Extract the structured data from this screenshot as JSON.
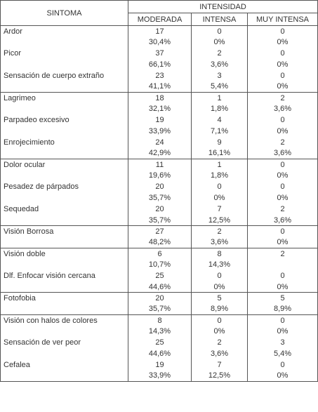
{
  "header": {
    "sintoma": "SINTOMA",
    "intensidad": "INTENSIDAD",
    "columns": [
      "MODERADA",
      "INTENSA",
      "MUY INTENSA"
    ]
  },
  "groups": [
    {
      "rows": [
        {
          "name": "Ardor",
          "counts": [
            "17",
            "0",
            "0"
          ],
          "percents": [
            "30,4%",
            "0%",
            "0%"
          ]
        },
        {
          "name": "Picor",
          "counts": [
            "37",
            "2",
            "0"
          ],
          "percents": [
            "66,1%",
            "3,6%",
            "0%"
          ]
        },
        {
          "name": "Sensación de cuerpo extraño",
          "counts": [
            "23",
            "3",
            "0"
          ],
          "percents": [
            "41,1%",
            "5,4%",
            "0%"
          ]
        }
      ]
    },
    {
      "rows": [
        {
          "name": "Lagrimeo",
          "counts": [
            "18",
            "1",
            "2"
          ],
          "percents": [
            "32,1%",
            "1,8%",
            "3,6%"
          ]
        },
        {
          "name": "Parpadeo excesivo",
          "counts": [
            "19",
            "4",
            "0"
          ],
          "percents": [
            "33,9%",
            "7,1%",
            "0%"
          ]
        },
        {
          "name": "Enrojecimiento",
          "counts": [
            "24",
            "9",
            "2"
          ],
          "percents": [
            "42,9%",
            "16,1%",
            "3,6%"
          ]
        }
      ]
    },
    {
      "rows": [
        {
          "name": "Dolor ocular",
          "counts": [
            "11",
            "1",
            "0"
          ],
          "percents": [
            "19,6%",
            "1,8%",
            "0%"
          ]
        },
        {
          "name": "Pesadez de párpados",
          "counts": [
            "20",
            "0",
            "0"
          ],
          "percents": [
            "35,7%",
            "0%",
            "0%"
          ]
        },
        {
          "name": "Sequedad",
          "counts": [
            "20",
            "7",
            "2"
          ],
          "percents": [
            "35,7%",
            "12,5%",
            "3,6%"
          ]
        }
      ]
    },
    {
      "rows": [
        {
          "name": "Visión Borrosa",
          "counts": [
            "27",
            "2",
            "0"
          ],
          "percents": [
            "48,2%",
            "3,6%",
            "0%"
          ]
        }
      ]
    },
    {
      "rows": [
        {
          "name": "Visión doble",
          "counts": [
            "6",
            "8",
            "2"
          ],
          "percents": [
            "10,7%",
            "14,3%",
            null
          ]
        },
        {
          "name": "Dlf. Enfocar visión cercana",
          "counts": [
            "25",
            "0",
            "0"
          ],
          "percents": [
            "44,6%",
            "0%",
            "0%"
          ]
        }
      ]
    },
    {
      "rows": [
        {
          "name": "Fotofobia",
          "counts": [
            "20",
            "5",
            "5"
          ],
          "percents": [
            "35,7%",
            "8,9%",
            "8,9%"
          ]
        }
      ]
    },
    {
      "rows": [
        {
          "name": "Visión con halos de colores",
          "counts": [
            "8",
            "0",
            "0"
          ],
          "percents": [
            "14,3%",
            "0%",
            "0%"
          ]
        },
        {
          "name": "Sensación de ver peor",
          "counts": [
            "25",
            "2",
            "3"
          ],
          "percents": [
            "44,6%",
            "3,6%",
            "5,4%"
          ]
        },
        {
          "name": "Cefalea",
          "counts": [
            "19",
            "7",
            "0"
          ],
          "percents": [
            "33,9%",
            "12,5%",
            "0%"
          ]
        }
      ]
    }
  ]
}
